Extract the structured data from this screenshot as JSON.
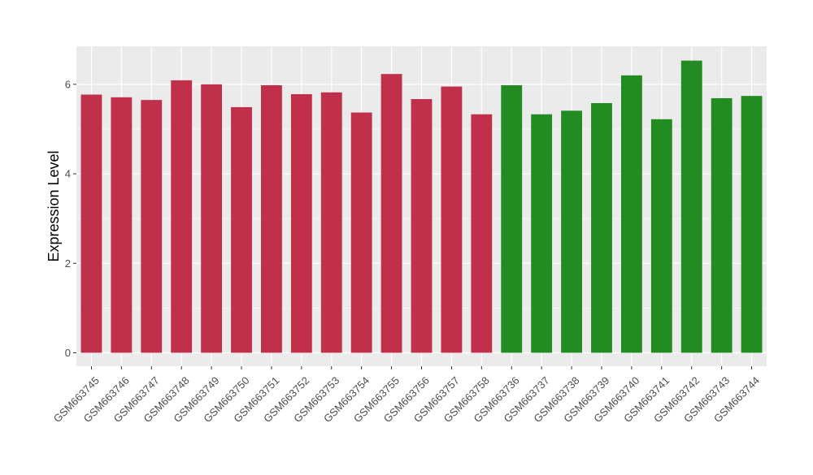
{
  "chart_data": {
    "type": "bar",
    "title": "",
    "xlabel": "",
    "ylabel": "Expression Level",
    "ylim": [
      -0.3,
      6.85
    ],
    "yticks": [
      0,
      2,
      4,
      6
    ],
    "grid": true,
    "legend": "none",
    "categories": [
      "GSM663745",
      "GSM663746",
      "GSM663747",
      "GSM663748",
      "GSM663749",
      "GSM663750",
      "GSM663751",
      "GSM663752",
      "GSM663753",
      "GSM663754",
      "GSM663755",
      "GSM663756",
      "GSM663757",
      "GSM663758",
      "GSM663736",
      "GSM663737",
      "GSM663738",
      "GSM663739",
      "GSM663740",
      "GSM663741",
      "GSM663742",
      "GSM663743",
      "GSM663744"
    ],
    "values": [
      5.77,
      5.71,
      5.65,
      6.09,
      6.0,
      5.49,
      5.98,
      5.78,
      5.82,
      5.37,
      6.23,
      5.67,
      5.95,
      5.33,
      5.98,
      5.33,
      5.41,
      5.58,
      6.2,
      5.22,
      6.53,
      5.69,
      5.74
    ],
    "bar_colors": [
      "#C1304A",
      "#C1304A",
      "#C1304A",
      "#C1304A",
      "#C1304A",
      "#C1304A",
      "#C1304A",
      "#C1304A",
      "#C1304A",
      "#C1304A",
      "#C1304A",
      "#C1304A",
      "#C1304A",
      "#C1304A",
      "#228B22",
      "#228B22",
      "#228B22",
      "#228B22",
      "#228B22",
      "#228B22",
      "#228B22",
      "#228B22",
      "#228B22"
    ],
    "panel_color": "#EBEBEB",
    "grid_color": "#FFFFFF"
  }
}
